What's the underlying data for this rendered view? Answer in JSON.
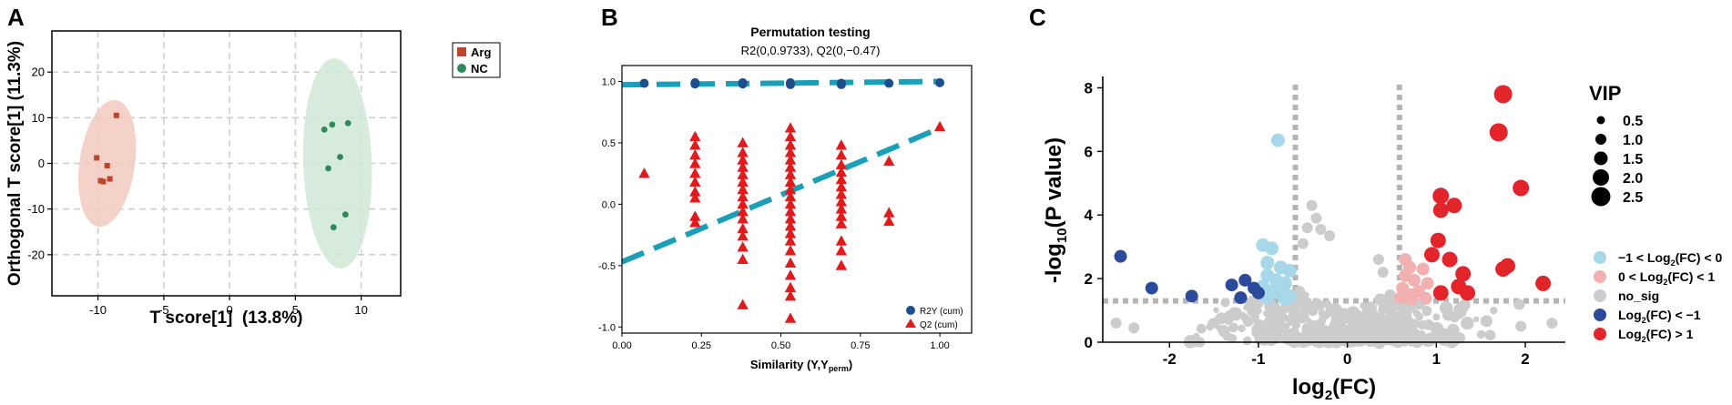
{
  "chart_data": [
    {
      "panel": "A",
      "type": "scatter",
      "xlabel": "T score[1]  (13.8%)",
      "ylabel": "Orthogonal T score[1] (11.3%)",
      "xlim": [
        -13.5,
        13
      ],
      "ylim": [
        -29,
        29
      ],
      "xticks": [
        -10,
        -5,
        0,
        5,
        10
      ],
      "yticks": [
        -20,
        -10,
        0,
        10,
        20
      ],
      "grid": true,
      "legend_position": "top-right",
      "series": [
        {
          "name": "Arg",
          "marker": "square",
          "color": "#c0442a",
          "ellipse_color": "#f2c9c0",
          "ellipse": {
            "cx": -9.3,
            "cy": 0,
            "rx": 2.1,
            "ry": 14
          },
          "points": [
            [
              -8.6,
              10.5
            ],
            [
              -10.1,
              1.2
            ],
            [
              -9.3,
              -0.5
            ],
            [
              -9.8,
              -3.8
            ],
            [
              -9.6,
              -4.0
            ],
            [
              -9.1,
              -3.4
            ]
          ]
        },
        {
          "name": "NC",
          "marker": "circle",
          "color": "#2e8b57",
          "ellipse_color": "#cfe8d6",
          "ellipse": {
            "cx": 8.2,
            "cy": 0,
            "rx": 2.6,
            "ry": 23
          },
          "points": [
            [
              7.8,
              8.5
            ],
            [
              9.0,
              8.8
            ],
            [
              7.2,
              7.4
            ],
            [
              8.4,
              1.4
            ],
            [
              7.5,
              -1.1
            ],
            [
              8.8,
              -11.2
            ],
            [
              7.9,
              -14.0
            ]
          ]
        }
      ]
    },
    {
      "panel": "B",
      "type": "scatter",
      "title": "Permutation testing",
      "subtitle": "R2(0,0.9733), Q2(0,−0.47)",
      "xlabel": "Similarity (Y,Y",
      "xlabel_sub": "perm",
      "xlabel_end": ")",
      "xlim": [
        0,
        1.1
      ],
      "ylim": [
        -1.05,
        1.13
      ],
      "xticks": [
        "0.00",
        "0.25",
        "0.50",
        "0.75",
        "1.00"
      ],
      "xtick_values": [
        0,
        0.25,
        0.5,
        0.75,
        1.0
      ],
      "yticks": [
        "-1.0",
        "-0.5",
        "0.0",
        "0.5",
        "1.0"
      ],
      "ytick_values": [
        -1,
        -0.5,
        0,
        0.5,
        1
      ],
      "grid": false,
      "legend_position": "bottom-right",
      "r2_label": "R2Y (cum)",
      "q2_label": "Q2 (cum)",
      "r2_color": "#1f4e8c",
      "q2_color": "#e31a1c",
      "line_color": "#1a9fb8",
      "r2_line": {
        "intercept": 0.973,
        "slope": 0.027
      },
      "q2_line": {
        "intercept": -0.47,
        "slope": 1.09
      },
      "r2_points": [
        [
          0.07,
          0.985
        ],
        [
          0.23,
          0.98
        ],
        [
          0.23,
          0.99
        ],
        [
          0.38,
          0.98
        ],
        [
          0.38,
          0.985
        ],
        [
          0.38,
          0.99
        ],
        [
          0.53,
          0.975
        ],
        [
          0.53,
          0.985
        ],
        [
          0.53,
          0.99
        ],
        [
          0.69,
          0.975
        ],
        [
          0.69,
          0.985
        ],
        [
          0.84,
          0.985
        ],
        [
          1.0,
          0.99
        ]
      ],
      "q2_columns": [
        {
          "x": 0.07,
          "y": [
            0.25
          ]
        },
        {
          "x": 0.23,
          "y": [
            0.55,
            0.48,
            0.4,
            0.33,
            0.25,
            0.18,
            0.1,
            0.05,
            -0.1,
            -0.15
          ]
        },
        {
          "x": 0.38,
          "y": [
            0.5,
            0.42,
            0.36,
            0.3,
            0.24,
            0.18,
            0.12,
            0.06,
            0.0,
            -0.06,
            -0.12,
            -0.2,
            -0.26,
            -0.35,
            -0.45,
            -0.82
          ]
        },
        {
          "x": 0.53,
          "y": [
            0.62,
            0.55,
            0.48,
            0.42,
            0.36,
            0.3,
            0.24,
            0.18,
            0.12,
            0.06,
            0.0,
            -0.06,
            -0.12,
            -0.18,
            -0.24,
            -0.3,
            -0.38,
            -0.48,
            -0.58,
            -0.68,
            -0.75,
            -0.93
          ]
        },
        {
          "x": 0.69,
          "y": [
            0.48,
            0.4,
            0.32,
            0.26,
            0.2,
            0.14,
            0.08,
            0.02,
            -0.04,
            -0.1,
            -0.16,
            -0.3,
            -0.38,
            -0.5
          ]
        },
        {
          "x": 0.84,
          "y": [
            0.35,
            -0.07,
            -0.14
          ]
        },
        {
          "x": 1.0,
          "y": [
            0.63
          ]
        }
      ]
    },
    {
      "panel": "C",
      "type": "scatter",
      "xlabel": "log",
      "xlabel_sub": "2",
      "xlabel_end": "(FC)",
      "ylabel": "-log",
      "ylabel_sub": "10",
      "ylabel_end": "(P value)",
      "xlim": [
        -2.75,
        2.45
      ],
      "ylim": [
        0,
        8.3
      ],
      "xticks": [
        -2,
        -1,
        0,
        1,
        2
      ],
      "yticks": [
        0,
        2,
        4,
        6,
        8
      ],
      "threshold_x": [
        -0.585,
        0.585
      ],
      "threshold_y": 1.3,
      "legend_position": "right",
      "size_legend": {
        "title": "VIP",
        "values": [
          "0.5",
          "1.0",
          "1.5",
          "2.0",
          "2.5"
        ]
      },
      "categories": [
        {
          "key": "lightblue",
          "label_pre": "−1 < Log",
          "label_sub": "2",
          "label_post": "(FC) < 0",
          "color": "#a6d8ea"
        },
        {
          "key": "pink",
          "label_pre": "0 < Log",
          "label_sub": "2",
          "label_post": "(FC) < 1",
          "color": "#f2b0b0"
        },
        {
          "key": "grey",
          "label_pre": "no_sig",
          "label_sub": "",
          "label_post": "",
          "color": "#cccccc"
        },
        {
          "key": "darkblue",
          "label_pre": "Log",
          "label_sub": "2",
          "label_post": "(FC) < −1",
          "color": "#2b4a9c"
        },
        {
          "key": "red",
          "label_pre": "Log",
          "label_sub": "2",
          "label_post": "(FC) > 1",
          "color": "#e3242b"
        }
      ],
      "points": {
        "red": [
          [
            1.75,
            7.8
          ],
          [
            1.7,
            6.6
          ],
          [
            1.95,
            4.85
          ],
          [
            1.05,
            4.6
          ],
          [
            1.2,
            4.3
          ],
          [
            1.05,
            4.15
          ],
          [
            1.02,
            3.2
          ],
          [
            0.95,
            2.75
          ],
          [
            1.15,
            2.6
          ],
          [
            1.8,
            2.4
          ],
          [
            1.75,
            2.3
          ],
          [
            1.3,
            2.15
          ],
          [
            1.05,
            1.55
          ],
          [
            1.25,
            1.75
          ],
          [
            1.35,
            1.55
          ],
          [
            2.2,
            1.85
          ]
        ],
        "darkblue": [
          [
            -2.55,
            2.7
          ],
          [
            -2.2,
            1.7
          ],
          [
            -1.15,
            1.95
          ],
          [
            -1.3,
            1.8
          ],
          [
            -1.05,
            1.7
          ],
          [
            -1.75,
            1.45
          ],
          [
            -1.2,
            1.4
          ],
          [
            -1.0,
            1.55
          ]
        ],
        "lightblue": [
          [
            -0.78,
            6.35
          ],
          [
            -0.95,
            3.05
          ],
          [
            -0.85,
            2.95
          ],
          [
            -0.9,
            2.5
          ],
          [
            -0.75,
            2.35
          ],
          [
            -0.65,
            2.25
          ],
          [
            -0.9,
            2.1
          ],
          [
            -0.8,
            1.95
          ],
          [
            -0.7,
            1.85
          ],
          [
            -0.95,
            1.75
          ],
          [
            -0.85,
            1.6
          ],
          [
            -0.75,
            1.55
          ],
          [
            -0.65,
            1.45
          ],
          [
            -0.9,
            1.4
          ],
          [
            -0.7,
            1.35
          ]
        ],
        "pink": [
          [
            0.65,
            2.6
          ],
          [
            0.7,
            2.35
          ],
          [
            0.85,
            2.3
          ],
          [
            0.65,
            2.1
          ],
          [
            0.75,
            1.95
          ],
          [
            0.9,
            1.85
          ],
          [
            0.62,
            1.7
          ],
          [
            0.8,
            1.6
          ],
          [
            0.7,
            1.5
          ],
          [
            0.6,
            1.4
          ],
          [
            0.88,
            1.38
          ],
          [
            0.72,
            1.35
          ]
        ],
        "grey_highlights": [
          [
            -0.4,
            4.3
          ],
          [
            -0.35,
            3.9
          ],
          [
            -0.3,
            3.55
          ],
          [
            -0.45,
            3.6
          ],
          [
            -0.2,
            3.35
          ],
          [
            -0.5,
            3.1
          ],
          [
            -2.6,
            0.6
          ],
          [
            -2.4,
            0.45
          ],
          [
            1.95,
            0.5
          ],
          [
            2.3,
            0.6
          ],
          [
            0.35,
            2.6
          ],
          [
            0.4,
            2.2
          ]
        ]
      }
    }
  ],
  "panel_labels": [
    "A",
    "B",
    "C"
  ]
}
